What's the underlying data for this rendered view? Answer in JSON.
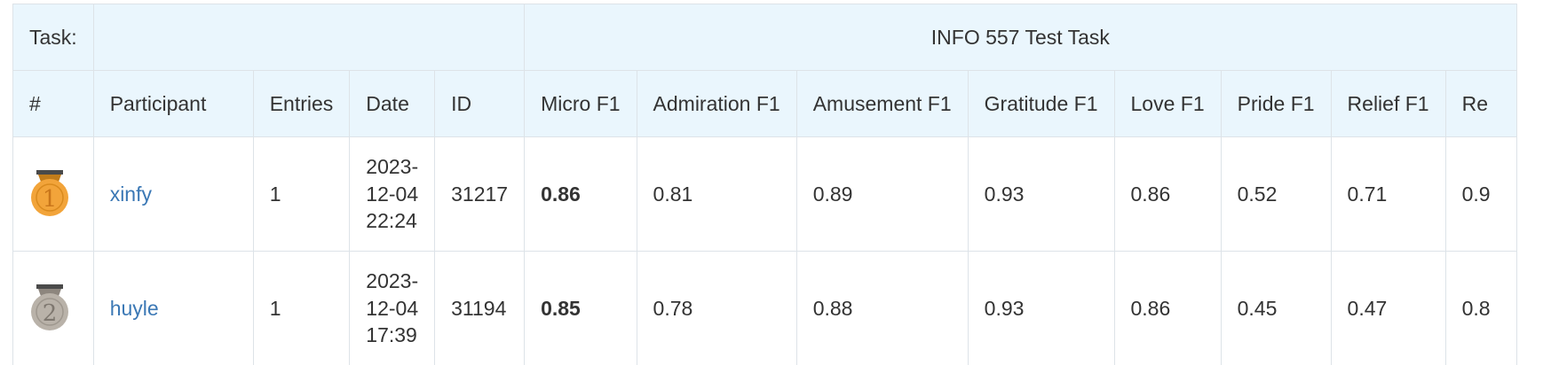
{
  "task": {
    "label": "Task:",
    "name": "INFO 557 Test Task"
  },
  "columns": {
    "rank": "#",
    "participant": "Participant",
    "entries": "Entries",
    "date": "Date",
    "id": "ID",
    "micro_f1": "Micro F1",
    "admiration_f1": "Admiration F1",
    "amusement_f1": "Amusement F1",
    "gratitude_f1": "Gratitude F1",
    "love_f1": "Love F1",
    "pride_f1": "Pride F1",
    "relief_f1": "Relief F1",
    "remorse_f1": "Re"
  },
  "rows": [
    {
      "rank": "1",
      "participant": "xinfy",
      "entries": "1",
      "date_lines": [
        "2023-",
        "12-04",
        "22:24"
      ],
      "id": "31217",
      "micro_f1": "0.86",
      "admiration_f1": "0.81",
      "amusement_f1": "0.89",
      "gratitude_f1": "0.93",
      "love_f1": "0.86",
      "pride_f1": "0.52",
      "relief_f1": "0.71",
      "remorse_f1": "0.9"
    },
    {
      "rank": "2",
      "participant": "huyle",
      "entries": "1",
      "date_lines": [
        "2023-",
        "12-04",
        "17:39"
      ],
      "id": "31194",
      "micro_f1": "0.85",
      "admiration_f1": "0.78",
      "amusement_f1": "0.88",
      "gratitude_f1": "0.93",
      "love_f1": "0.86",
      "pride_f1": "0.45",
      "relief_f1": "0.47",
      "remorse_f1": "0.8"
    }
  ],
  "colors": {
    "header_bg": "#eaf6fd",
    "border": "#dde3e8",
    "link": "#3b78b5",
    "gold": "#f2a43a",
    "silver": "#b9b2a9"
  }
}
